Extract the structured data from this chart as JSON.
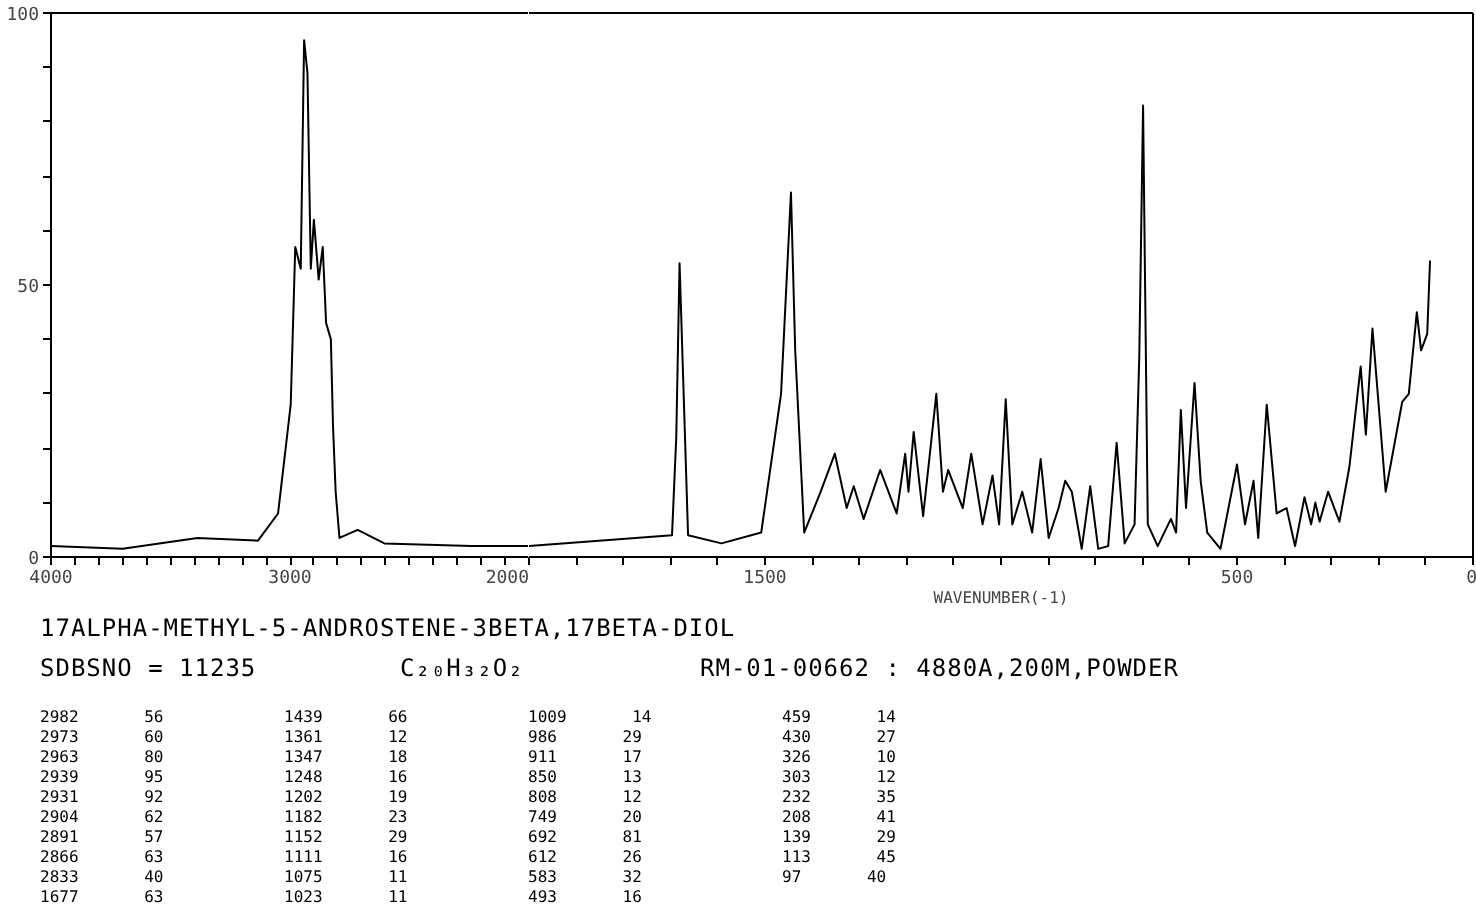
{
  "chart_data": [
    {
      "type": "line",
      "title": "17ALPHA-METHYL-5-ANDROSTENE-3BETA,17BETA-DIOL",
      "color": "#000000",
      "annotations": [
        "SDBSNO = 11235",
        "C₂₀H₃₂O₂",
        "RM-01-00662 : 4880A,200M,POWDER",
        "2982 56",
        "2973 60",
        "2963 80",
        "2939 95",
        "2931 92",
        "2904 62",
        "2891 57",
        "2866 63",
        "2833 40",
        "1677 63",
        "1439 66",
        "1361 12",
        "1347 18",
        "1248 16",
        "1202 19",
        "1182 23",
        "1152 29",
        "1111 16",
        "1075 11",
        "1023 11",
        "1009 14",
        "986 29",
        "911 17",
        "850 13",
        "808 12",
        "749 20",
        "692 81",
        "612 26",
        "583 32",
        "493 16",
        "459 14",
        "430 27",
        "326 10",
        "303 12",
        "232 35",
        "208 41",
        "139 29",
        "113 45",
        "97 40"
      ],
      "x": [
        4000,
        3700,
        3387,
        3134,
        3050,
        2997,
        2978,
        2955,
        2941,
        2927,
        2913,
        2900,
        2880,
        2863,
        2849,
        2829,
        2820,
        2809,
        2793,
        2717,
        2605,
        2241,
        2000
      ],
      "values": [
        2,
        1.5,
        3.5,
        3,
        8,
        28,
        57,
        53,
        95,
        89,
        53,
        62,
        51,
        57,
        43,
        40,
        24,
        12,
        3.5,
        5,
        2.5,
        2,
        2
      ],
      "xlim": [
        4000,
        2000
      ],
      "ylim": [
        0,
        100
      ],
      "xticks": [
        4000,
        {
          "value": 3900,
          "label": null
        },
        {
          "value": 3800,
          "label": null
        },
        {
          "value": 3700,
          "label": null
        },
        {
          "value": 3600,
          "label": null
        },
        {
          "value": 3500,
          "label": null
        },
        {
          "value": 3400,
          "label": null
        },
        {
          "value": 3300,
          "label": null
        },
        {
          "value": 3200,
          "label": null
        },
        {
          "value": 3100,
          "label": null
        },
        3000,
        {
          "value": 2900,
          "label": null
        },
        {
          "value": 2800,
          "label": null
        },
        {
          "value": 2700,
          "label": null
        },
        {
          "value": 2600,
          "label": null
        },
        {
          "value": 2500,
          "label": null
        },
        {
          "value": 2400,
          "label": null
        },
        {
          "value": 2300,
          "label": null
        },
        {
          "value": 2200,
          "label": null
        },
        {
          "value": 2100,
          "label": null
        },
        2000
      ],
      "yticks": [
        0,
        {
          "value": 10,
          "label": null
        },
        {
          "value": 20,
          "label": null
        },
        {
          "value": 30,
          "label": null
        },
        {
          "value": 40,
          "label": null
        },
        50,
        {
          "value": 60,
          "label": null
        },
        {
          "value": 70,
          "label": null
        },
        {
          "value": 80,
          "label": null
        },
        {
          "value": 90,
          "label": null
        },
        100
      ]
    },
    {
      "type": "line",
      "xlabel": "WAVENUMBER(-1)",
      "color": "#000000",
      "tick_labels": "x",
      "x": [
        2000,
        1697,
        1688,
        1681,
        1663,
        1592,
        1508,
        1466,
        1445,
        1436,
        1417,
        1382,
        1352,
        1327,
        1312,
        1291,
        1256,
        1221,
        1203,
        1196,
        1185,
        1165,
        1137,
        1123,
        1112,
        1081,
        1063,
        1039,
        1018,
        1004,
        990,
        976,
        955,
        934,
        916,
        899,
        878,
        864,
        850,
        829,
        811,
        794,
        773,
        755,
        738,
        717,
        707,
        699,
        689,
        668,
        640,
        629,
        619,
        608,
        590,
        577,
        563,
        535,
        500,
        483,
        465,
        455,
        437,
        416,
        395,
        377,
        357,
        343,
        334,
        325,
        307,
        283,
        262,
        238,
        227,
        213,
        185,
        150,
        136,
        119,
        110,
        97,
        91
      ],
      "values": [
        2,
        4,
        22,
        54,
        4,
        2.5,
        4.5,
        30,
        67,
        38,
        4.5,
        12,
        19,
        9,
        13,
        7,
        16,
        8,
        19,
        12,
        23,
        7.5,
        30,
        12,
        16,
        9,
        19,
        6,
        15,
        6,
        29,
        6,
        12,
        4.5,
        18,
        3.5,
        9,
        14,
        12,
        1.5,
        13,
        1.5,
        2,
        21,
        2.5,
        6,
        37,
        83,
        6,
        2,
        7,
        4.5,
        27,
        9,
        32,
        14,
        4.5,
        1.5,
        17,
        6,
        14,
        3.5,
        28,
        8,
        9,
        2,
        11,
        6,
        10,
        6.5,
        12,
        6.5,
        16.5,
        35,
        22.5,
        42,
        12,
        28.5,
        30,
        45,
        38,
        41,
        54.5
      ],
      "xlim": [
        2000,
        0
      ],
      "ylim": [
        0,
        100
      ],
      "xticks": [
        {
          "value": 2000,
          "label": null
        },
        {
          "value": 1900,
          "label": null
        },
        {
          "value": 1800,
          "label": null
        },
        {
          "value": 1700,
          "label": null
        },
        {
          "value": 1600,
          "label": null
        },
        1500,
        {
          "value": 1400,
          "label": null
        },
        {
          "value": 1300,
          "label": null
        },
        {
          "value": 1200,
          "label": null
        },
        {
          "value": 1100,
          "label": null
        },
        {
          "value": 1000,
          "label": null
        },
        {
          "value": 900,
          "label": null
        },
        {
          "value": 800,
          "label": null
        },
        {
          "value": 700,
          "label": null
        },
        {
          "value": 600,
          "label": null
        },
        500,
        {
          "value": 400,
          "label": null
        },
        {
          "value": 300,
          "label": null
        },
        {
          "value": 200,
          "label": null
        },
        {
          "value": 100,
          "label": null
        },
        0
      ]
    }
  ]
}
